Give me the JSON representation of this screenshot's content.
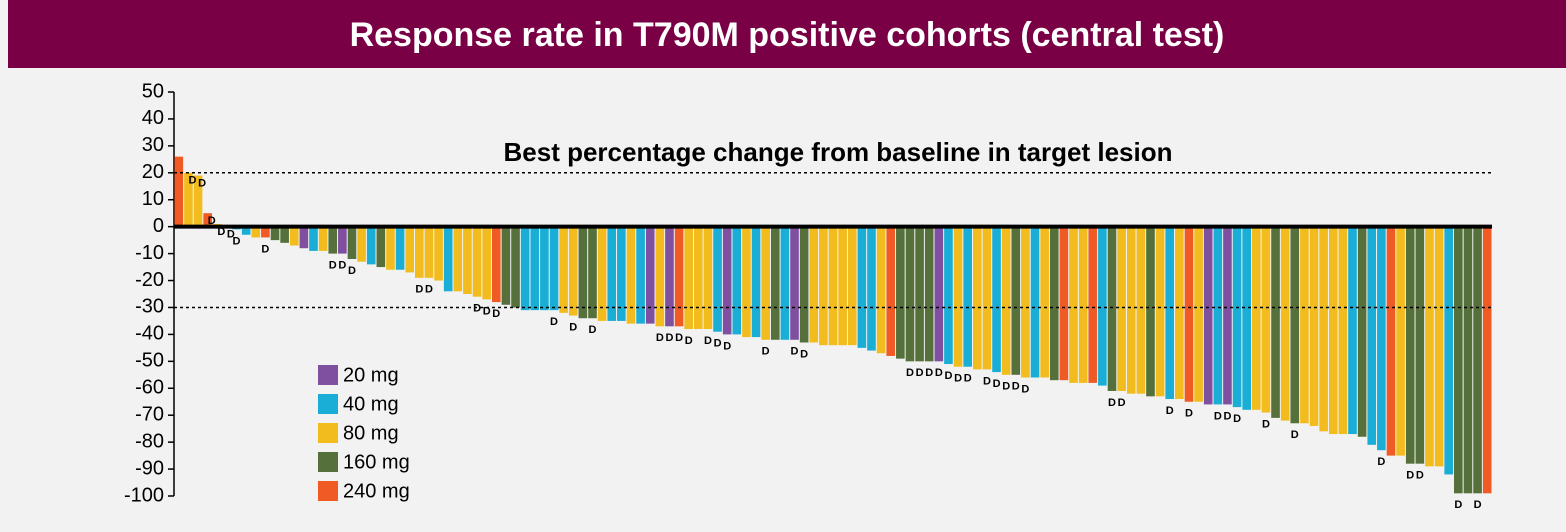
{
  "chart_data": {
    "type": "waterfall",
    "title": "Response rate in T790M positive cohorts (central test)",
    "subtitle": "Best percentage change from baseline in target lesion",
    "legend": [
      {
        "name": "20 mg",
        "color": "#7f4fa0"
      },
      {
        "name": "40 mg",
        "color": "#1aaed6"
      },
      {
        "name": "80 mg",
        "color": "#f2bc1f"
      },
      {
        "name": "160 mg",
        "color": "#55703a"
      },
      {
        "name": "240 mg",
        "color": "#f05a24"
      }
    ],
    "values": [
      26,
      20,
      19,
      5,
      1,
      0,
      -1,
      -3,
      -4,
      -4,
      -5,
      -6,
      -7,
      -8,
      -9,
      -9,
      -10,
      -10,
      -12,
      -13,
      -14,
      -15,
      -16,
      -16,
      -17,
      -19,
      -19,
      -20,
      -24,
      -24,
      -25,
      -26,
      -27,
      -28,
      -29,
      -30,
      -31,
      -31,
      -31,
      -31,
      -32,
      -33,
      -34,
      -34,
      -35,
      -35,
      -35,
      -36,
      -36,
      -36,
      -37,
      -37,
      -37,
      -38,
      -38,
      -38,
      -39,
      -40,
      -40,
      -41,
      -41,
      -42,
      -42,
      -42,
      -42,
      -43,
      -43,
      -44,
      -44,
      -44,
      -44,
      -45,
      -46,
      -47,
      -48,
      -49,
      -50,
      -50,
      -50,
      -50,
      -51,
      -52,
      -52,
      -53,
      -53,
      -54,
      -55,
      -55,
      -56,
      -56,
      -56,
      -57,
      -57,
      -58,
      -58,
      -58,
      -59,
      -61,
      -61,
      -62,
      -62,
      -63,
      -63,
      -64,
      -64,
      -65,
      -65,
      -66,
      -66,
      -66,
      -67,
      -68,
      -68,
      -69,
      -71,
      -72,
      -73,
      -73,
      -74,
      -76,
      -77,
      -77,
      -77,
      -78,
      -81,
      -83,
      -85,
      -85,
      -88,
      -88,
      -89,
      -89,
      -92,
      -99,
      -99,
      -99,
      -99
    ],
    "bar_group": [
      4,
      2,
      2,
      4,
      2,
      2,
      1,
      1,
      2,
      4,
      3,
      3,
      2,
      0,
      1,
      2,
      3,
      0,
      3,
      2,
      1,
      3,
      2,
      1,
      2,
      2,
      2,
      2,
      1,
      2,
      2,
      2,
      2,
      4,
      3,
      3,
      1,
      1,
      1,
      1,
      2,
      2,
      3,
      3,
      2,
      1,
      1,
      2,
      1,
      0,
      2,
      0,
      4,
      2,
      2,
      2,
      1,
      0,
      1,
      2,
      1,
      2,
      3,
      1,
      0,
      3,
      2,
      2,
      2,
      2,
      2,
      1,
      1,
      2,
      4,
      3,
      3,
      3,
      3,
      0,
      1,
      2,
      1,
      2,
      2,
      1,
      2,
      3,
      2,
      1,
      2,
      3,
      4,
      2,
      2,
      4,
      1,
      3,
      2,
      2,
      2,
      3,
      2,
      1,
      2,
      4,
      2,
      0,
      1,
      0,
      1,
      1,
      2,
      2,
      3,
      2,
      3,
      2,
      2,
      2,
      2,
      2,
      1,
      3,
      1,
      1,
      4,
      2,
      3,
      3,
      2,
      2,
      1,
      3,
      3,
      3,
      4
    ],
    "annotations": [
      {
        "bar": 1,
        "text": "D"
      },
      {
        "bar": 2,
        "text": "D"
      },
      {
        "bar": 3,
        "text": "D"
      },
      {
        "bar": 4,
        "text": "D"
      },
      {
        "bar": 5,
        "text": "D"
      },
      {
        "bar": 6,
        "text": "D"
      },
      {
        "bar": 9,
        "text": "D"
      },
      {
        "bar": 16,
        "text": "D"
      },
      {
        "bar": 17,
        "text": "D"
      },
      {
        "bar": 18,
        "text": "D"
      },
      {
        "bar": 25,
        "text": "D"
      },
      {
        "bar": 26,
        "text": "D"
      },
      {
        "bar": 31,
        "text": "D"
      },
      {
        "bar": 32,
        "text": "D"
      },
      {
        "bar": 33,
        "text": "D"
      },
      {
        "bar": 39,
        "text": "D"
      },
      {
        "bar": 41,
        "text": "D"
      },
      {
        "bar": 43,
        "text": "D"
      },
      {
        "bar": 50,
        "text": "D"
      },
      {
        "bar": 51,
        "text": "D"
      },
      {
        "bar": 52,
        "text": "D"
      },
      {
        "bar": 53,
        "text": "D"
      },
      {
        "bar": 55,
        "text": "D"
      },
      {
        "bar": 56,
        "text": "D"
      },
      {
        "bar": 57,
        "text": "D"
      },
      {
        "bar": 61,
        "text": "D"
      },
      {
        "bar": 64,
        "text": "D"
      },
      {
        "bar": 65,
        "text": "D"
      },
      {
        "bar": 76,
        "text": "D"
      },
      {
        "bar": 77,
        "text": "D"
      },
      {
        "bar": 78,
        "text": "D"
      },
      {
        "bar": 79,
        "text": "D"
      },
      {
        "bar": 80,
        "text": "D"
      },
      {
        "bar": 81,
        "text": "D"
      },
      {
        "bar": 82,
        "text": "D"
      },
      {
        "bar": 84,
        "text": "D"
      },
      {
        "bar": 85,
        "text": "D"
      },
      {
        "bar": 86,
        "text": "D"
      },
      {
        "bar": 87,
        "text": "D"
      },
      {
        "bar": 88,
        "text": "D"
      },
      {
        "bar": 97,
        "text": "D"
      },
      {
        "bar": 98,
        "text": "D"
      },
      {
        "bar": 103,
        "text": "D"
      },
      {
        "bar": 105,
        "text": "D"
      },
      {
        "bar": 108,
        "text": "D"
      },
      {
        "bar": 109,
        "text": "D"
      },
      {
        "bar": 110,
        "text": "D"
      },
      {
        "bar": 113,
        "text": "D"
      },
      {
        "bar": 116,
        "text": "D"
      },
      {
        "bar": 125,
        "text": "D"
      },
      {
        "bar": 128,
        "text": "D"
      },
      {
        "bar": 129,
        "text": "D"
      },
      {
        "bar": 133,
        "text": "D"
      },
      {
        "bar": 135,
        "text": "D"
      }
    ],
    "ref_lines": [
      20,
      -30
    ],
    "ylim": [
      -100,
      50
    ],
    "yticks": [
      50,
      40,
      30,
      20,
      10,
      0,
      -10,
      -20,
      -30,
      -40,
      -50,
      -60,
      -70,
      -80,
      -90,
      -100
    ]
  }
}
